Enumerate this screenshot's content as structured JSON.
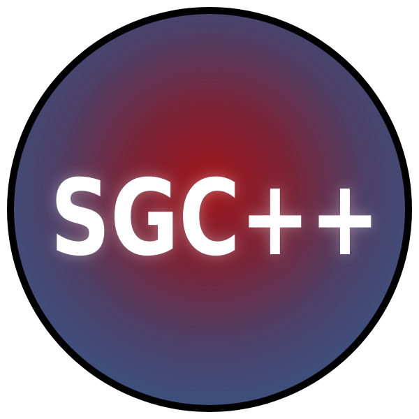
{
  "logo": {
    "wordmark": "SGC++",
    "colors": {
      "center_red": "#a01418",
      "edge_blue": "#3e4f7c",
      "ring_black": "#000000",
      "text_white": "#ffffff"
    }
  }
}
